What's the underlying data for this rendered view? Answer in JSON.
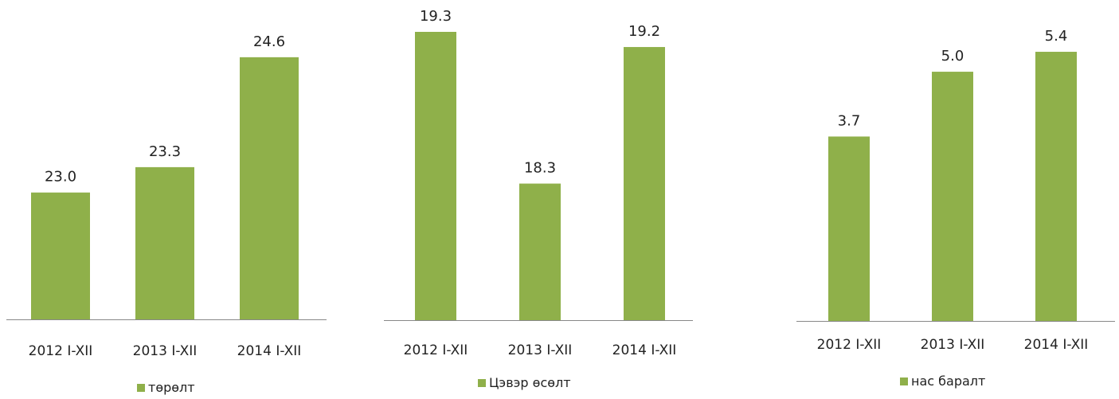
{
  "chart_data": [
    {
      "type": "bar",
      "categories": [
        "2012 I-XII",
        "2013 I-XII",
        "2014 I-XII"
      ],
      "series": [
        {
          "name": "төрөлт",
          "values": [
            23.0,
            23.3,
            24.6
          ]
        }
      ],
      "value_labels": [
        "23.0",
        "23.3",
        "24.6"
      ],
      "ylim": [
        21.5,
        24.9
      ],
      "grid": false,
      "legend": "bottom",
      "color": "#8fb04a"
    },
    {
      "type": "bar",
      "categories": [
        "2012 I-XII",
        "2013 I-XII",
        "2014 I-XII"
      ],
      "series": [
        {
          "name": "Цэвэр өсөлт",
          "values": [
            19.3,
            18.3,
            19.2
          ]
        }
      ],
      "value_labels": [
        "19.3",
        "18.3",
        "19.2"
      ],
      "ylim": [
        17.4,
        19.3
      ],
      "grid": false,
      "legend": "bottom",
      "color": "#8fb04a"
    },
    {
      "type": "bar",
      "categories": [
        "2012 I-XII",
        "2013 I-XII",
        "2014 I-XII"
      ],
      "series": [
        {
          "name": "нас баралт",
          "values": [
            3.7,
            5.0,
            5.4
          ]
        }
      ],
      "value_labels": [
        "3.7",
        "5.0",
        "5.4"
      ],
      "ylim": [
        0,
        5.8
      ],
      "grid": false,
      "legend": "bottom",
      "color": "#8fb04a"
    }
  ]
}
